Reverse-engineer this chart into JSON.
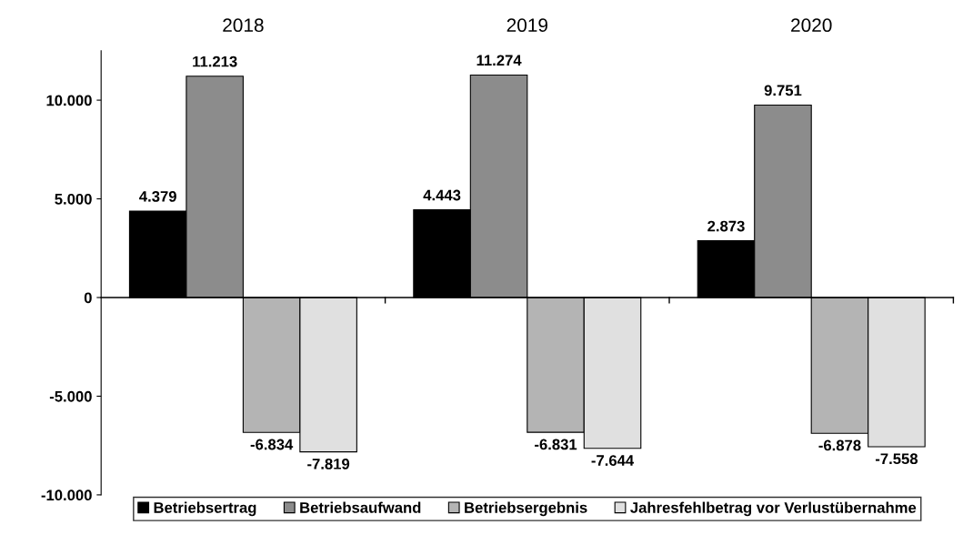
{
  "chart_data": {
    "type": "bar",
    "categories": [
      "2018",
      "2019",
      "2020"
    ],
    "series": [
      {
        "name": "Betriebsertrag",
        "color": "#000000",
        "values": [
          4379,
          4443,
          2873
        ],
        "value_labels": [
          "4.379",
          "4.443",
          "2.873"
        ]
      },
      {
        "name": "Betriebsaufwand",
        "color": "#8c8c8c",
        "values": [
          11213,
          11274,
          9751
        ],
        "value_labels": [
          "11.213",
          "11.274",
          "9.751"
        ]
      },
      {
        "name": "Betriebsergebnis",
        "color": "#b4b4b4",
        "values": [
          -6834,
          -6831,
          -6878
        ],
        "value_labels": [
          "-6.834",
          "-6.831",
          "-6.878"
        ]
      },
      {
        "name": "Jahresfehlbetrag vor Verlustübernahme",
        "color": "#e0e0e0",
        "values": [
          -7819,
          -7644,
          -7558
        ],
        "value_labels": [
          "-7.819",
          "-7.644",
          "-7.558"
        ]
      }
    ],
    "ylim": [
      -10000,
      12500
    ],
    "yticks": [
      {
        "value": -10000,
        "label": "-10.000"
      },
      {
        "value": -5000,
        "label": "-5.000"
      },
      0,
      {
        "value": 5000,
        "label": "5.000"
      },
      {
        "value": 10000,
        "label": "10.000"
      }
    ],
    "legend": "bottom"
  }
}
